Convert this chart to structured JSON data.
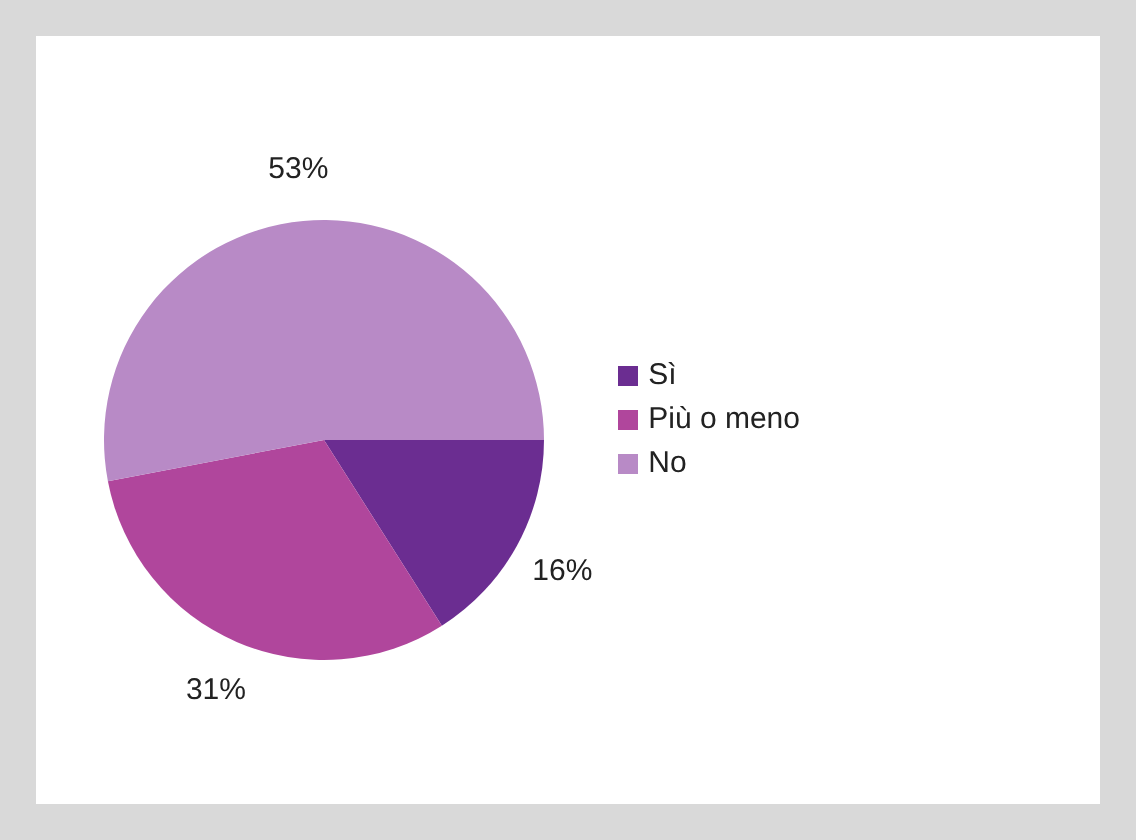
{
  "chart_data": {
    "type": "pie",
    "categories": [
      "Sì",
      "Più o meno",
      "No"
    ],
    "values": [
      16,
      31,
      53
    ],
    "colors": [
      "#6b2d91",
      "#b0469c",
      "#b88ac6"
    ],
    "value_labels": [
      "16%",
      "31%",
      "53%"
    ],
    "legend": "right"
  }
}
